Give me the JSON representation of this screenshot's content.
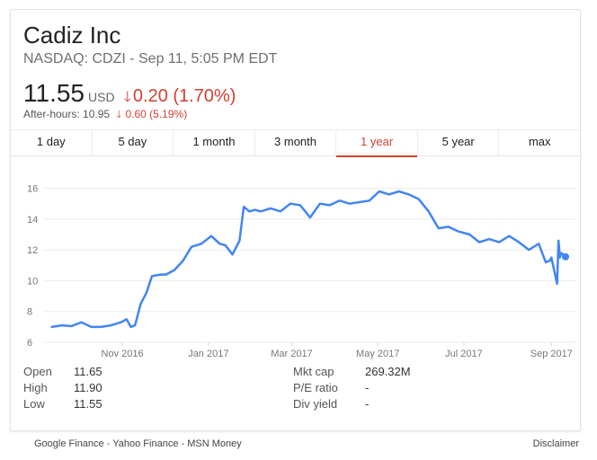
{
  "header": {
    "company": "Cadiz Inc",
    "exchange_line": "NASDAQ: CDZI - Sep 11, 5:05 PM EDT",
    "price": "11.55",
    "currency": "USD",
    "change": "0.20 (1.70%)",
    "after_hours_label": "After-hours: 10.95",
    "after_hours_change": "0.60 (5.19%)",
    "down_color": "#d23f31"
  },
  "tabs": [
    {
      "label": "1 day"
    },
    {
      "label": "5 day"
    },
    {
      "label": "1 month"
    },
    {
      "label": "3 month"
    },
    {
      "label": "1 year",
      "active": true
    },
    {
      "label": "5 year"
    },
    {
      "label": "max"
    }
  ],
  "chart_data": {
    "type": "line",
    "line_color": "#4285f4",
    "ylim": [
      6,
      16.5
    ],
    "yticks": [
      6,
      8,
      10,
      12,
      14,
      16
    ],
    "xticks": [
      "Nov 2016",
      "Jan 2017",
      "Mar 2017",
      "May 2017",
      "Jul 2017",
      "Sep 2017"
    ],
    "grid": true,
    "series": [
      {
        "x": [
          "2016-09-12",
          "2016-09-19",
          "2016-09-26",
          "2016-10-03",
          "2016-10-10",
          "2016-10-17",
          "2016-10-24",
          "2016-10-31",
          "2016-11-04",
          "2016-11-07",
          "2016-11-10",
          "2016-11-14",
          "2016-11-18",
          "2016-11-22",
          "2016-11-28",
          "2016-12-02",
          "2016-12-08",
          "2016-12-14",
          "2016-12-20",
          "2016-12-27",
          "2017-01-03",
          "2017-01-09",
          "2017-01-13",
          "2017-01-18",
          "2017-01-23",
          "2017-01-26",
          "2017-01-30",
          "2017-02-03",
          "2017-02-07",
          "2017-02-14",
          "2017-02-21",
          "2017-02-28",
          "2017-03-07",
          "2017-03-14",
          "2017-03-21",
          "2017-03-28",
          "2017-04-04",
          "2017-04-11",
          "2017-04-18",
          "2017-04-25",
          "2017-05-02",
          "2017-05-09",
          "2017-05-16",
          "2017-05-23",
          "2017-05-30",
          "2017-06-06",
          "2017-06-13",
          "2017-06-20",
          "2017-06-27",
          "2017-07-05",
          "2017-07-12",
          "2017-07-19",
          "2017-07-26",
          "2017-08-02",
          "2017-08-09",
          "2017-08-16",
          "2017-08-23",
          "2017-08-28",
          "2017-08-31",
          "2017-09-01",
          "2017-09-05",
          "2017-09-06",
          "2017-09-07",
          "2017-09-08",
          "2017-09-11"
        ],
        "values": [
          7.0,
          7.1,
          7.05,
          7.3,
          7.0,
          7.0,
          7.1,
          7.3,
          7.5,
          7.0,
          7.1,
          8.5,
          9.2,
          10.3,
          10.4,
          10.4,
          10.7,
          11.3,
          12.2,
          12.4,
          12.9,
          12.4,
          12.3,
          11.7,
          12.6,
          14.8,
          14.5,
          14.6,
          14.5,
          14.7,
          14.5,
          15.0,
          14.9,
          14.1,
          15.0,
          14.9,
          15.2,
          15.0,
          15.1,
          15.2,
          15.8,
          15.6,
          15.8,
          15.6,
          15.3,
          14.5,
          13.4,
          13.5,
          13.2,
          13.0,
          12.5,
          12.7,
          12.5,
          12.9,
          12.5,
          12.0,
          12.4,
          11.2,
          11.3,
          11.5,
          9.8,
          12.6,
          11.5,
          11.8,
          11.55
        ]
      }
    ]
  },
  "stats": {
    "left": [
      {
        "label": "Open",
        "value": "11.65"
      },
      {
        "label": "High",
        "value": "11.90"
      },
      {
        "label": "Low",
        "value": "11.55"
      }
    ],
    "right": [
      {
        "label": "Mkt cap",
        "value": "269.32M"
      },
      {
        "label": "P/E ratio",
        "value": "-"
      },
      {
        "label": "Div yield",
        "value": "-"
      }
    ]
  },
  "footer": {
    "link_google": "Google Finance",
    "link_yahoo": "Yahoo Finance",
    "link_msn": "MSN Money",
    "separator": " - ",
    "disclaimer": "Disclaimer"
  }
}
